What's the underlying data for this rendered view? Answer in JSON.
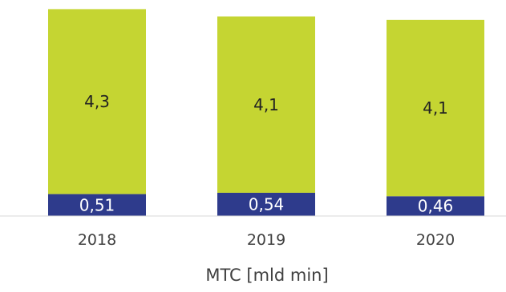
{
  "chart_data": {
    "type": "bar",
    "stacked": true,
    "categories": [
      "2018",
      "2019",
      "2020"
    ],
    "series": [
      {
        "values": [
          0.51,
          0.54,
          0.46
        ],
        "labels": [
          "0,51",
          "0,54",
          "0,46"
        ],
        "color": "#2e3b8c",
        "label_color": "#ffffff"
      },
      {
        "values": [
          4.3,
          4.1,
          4.1
        ],
        "labels": [
          "4,3",
          "4,1",
          "4,1"
        ],
        "color": "#c5d532",
        "label_color": "#222222"
      }
    ],
    "xlabel": "MTC [mld min]",
    "grid": false,
    "legend": "none",
    "axis_color": "#d9d9d9",
    "text_color": "#404040"
  }
}
